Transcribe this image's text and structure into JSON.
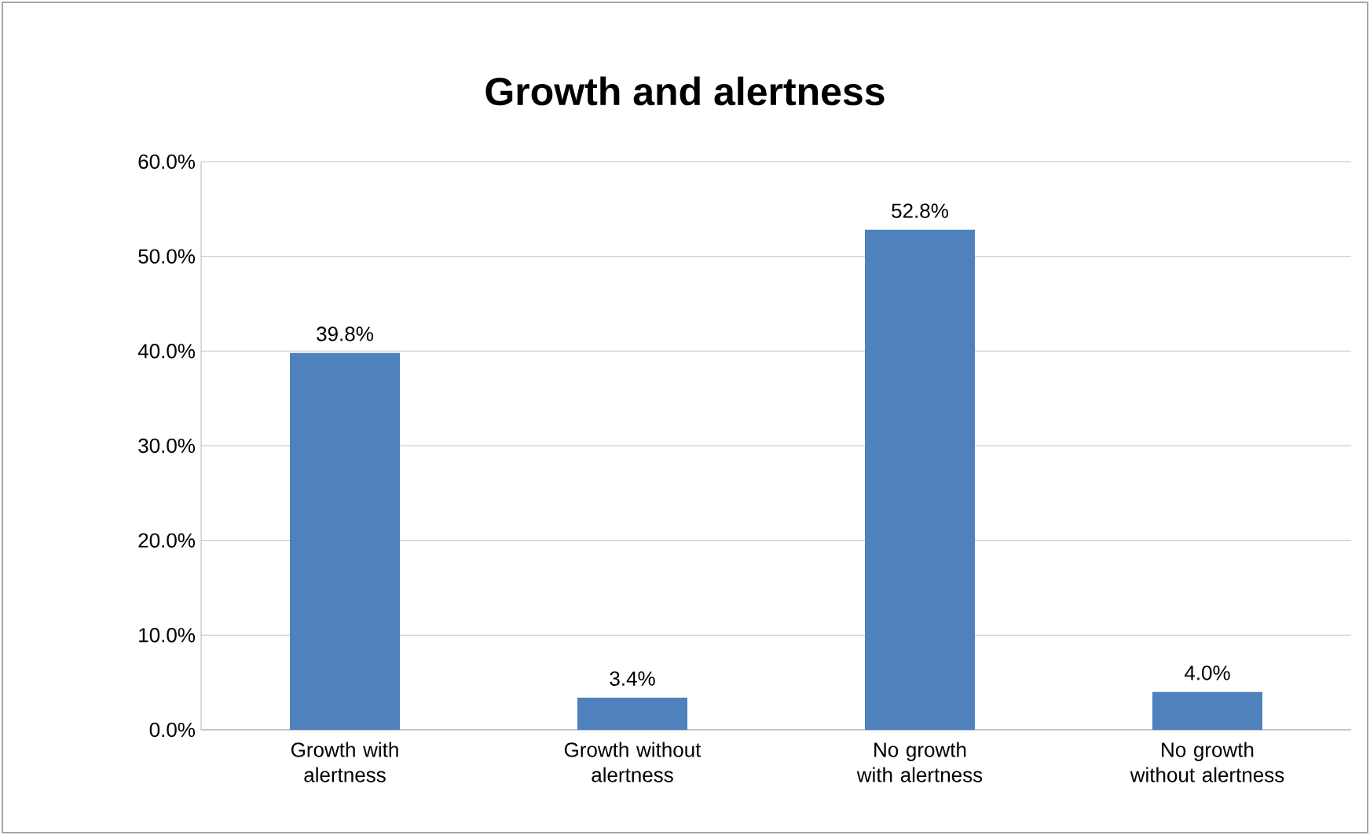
{
  "chart_data": {
    "type": "bar",
    "title": "Growth and alertness",
    "categories": [
      "Growth with alertness",
      "Growth without alertness",
      "No growth with alertness",
      "No growth without alertness"
    ],
    "values": [
      39.8,
      3.4,
      52.8,
      4.0
    ],
    "value_labels": [
      "39.8%",
      "3.4%",
      "52.8%",
      "4.0%"
    ],
    "color": "#4f81bd",
    "ylim": [
      0,
      60
    ],
    "yticks": [
      {
        "value": 0,
        "label": "0.0%"
      },
      {
        "value": 10,
        "label": "10.0%"
      },
      {
        "value": 20,
        "label": "20.0%"
      },
      {
        "value": 30,
        "label": "30.0%"
      },
      {
        "value": 40,
        "label": "40.0%"
      },
      {
        "value": 50,
        "label": "50.0%"
      },
      {
        "value": 60,
        "label": "60.0%"
      }
    ],
    "grid": "y"
  }
}
